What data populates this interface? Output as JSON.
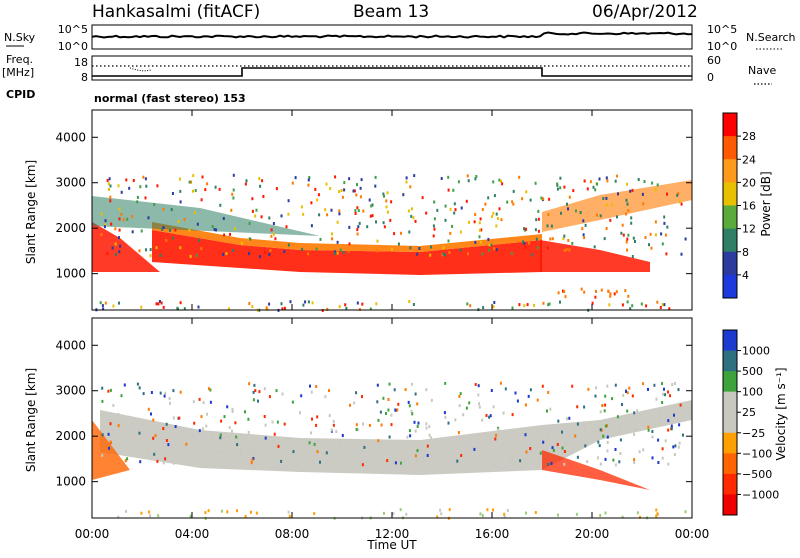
{
  "header": {
    "station": "Hankasalmi (fitACF)",
    "beam": "Beam 13",
    "date": "06/Apr/2012"
  },
  "noise_panel": {
    "left_label": "N.Sky",
    "right_label": "N.Search",
    "left_ticks": [
      "10^5",
      "10^0"
    ],
    "right_ticks": [
      "10^5",
      "10^0"
    ]
  },
  "freq_panel": {
    "left_label_line1": "Freq.",
    "left_label_line2": "[MHz]",
    "left_ticks": [
      "18",
      "8"
    ],
    "right_label": "Nave",
    "right_ticks": [
      "60",
      "0"
    ]
  },
  "cpid": {
    "label": "CPID",
    "mode": "normal (fast stereo) 153"
  },
  "chart_data": [
    {
      "type": "heatmap",
      "name": "power",
      "ylabel": "Slant Range [km]",
      "yticks": [
        "4000",
        "3000",
        "2000",
        "1000"
      ],
      "ylim": [
        200,
        4600
      ],
      "xlim_hours": [
        0,
        24
      ],
      "colorbar": {
        "label": "Power [dB]",
        "tick_labels": [
          "28",
          "24",
          "20",
          "16",
          "12",
          "8",
          "4"
        ],
        "colors": [
          "#ff0000",
          "#ff5a00",
          "#ff9a1a",
          "#e8c000",
          "#5aaa3c",
          "#2f7f66",
          "#2b3b9e",
          "#1d3bdc"
        ]
      }
    },
    {
      "type": "heatmap",
      "name": "velocity",
      "ylabel": "Slant Range [km]",
      "yticks": [
        "4000",
        "3000",
        "2000",
        "1000"
      ],
      "ylim": [
        200,
        4600
      ],
      "xlim_hours": [
        0,
        24
      ],
      "colorbar": {
        "label": "Velocity [m s⁻¹]",
        "tick_labels": [
          "1000",
          "500",
          "100",
          "25",
          "−25",
          "−100",
          "−500",
          "−1000"
        ],
        "colors": [
          "#1a3ad0",
          "#2e6f80",
          "#3fa33d",
          "#c8c8c0",
          "#c8c8c0",
          "#ffa000",
          "#ff6400",
          "#ff2a00",
          "#ee0000"
        ]
      }
    }
  ],
  "xaxis": {
    "label": "Time UT",
    "ticks": [
      "00:00",
      "04:00",
      "08:00",
      "12:00",
      "16:00",
      "20:00",
      "00:00"
    ]
  },
  "colors": {
    "power_red": "#ff1800",
    "power_orange": "#ff7a00",
    "power_yellow": "#e8c000",
    "power_green": "#3fa04a",
    "power_teal": "#2f7f66",
    "power_blue": "#2b3b9e",
    "ground_gray": "#c8c8c0"
  }
}
